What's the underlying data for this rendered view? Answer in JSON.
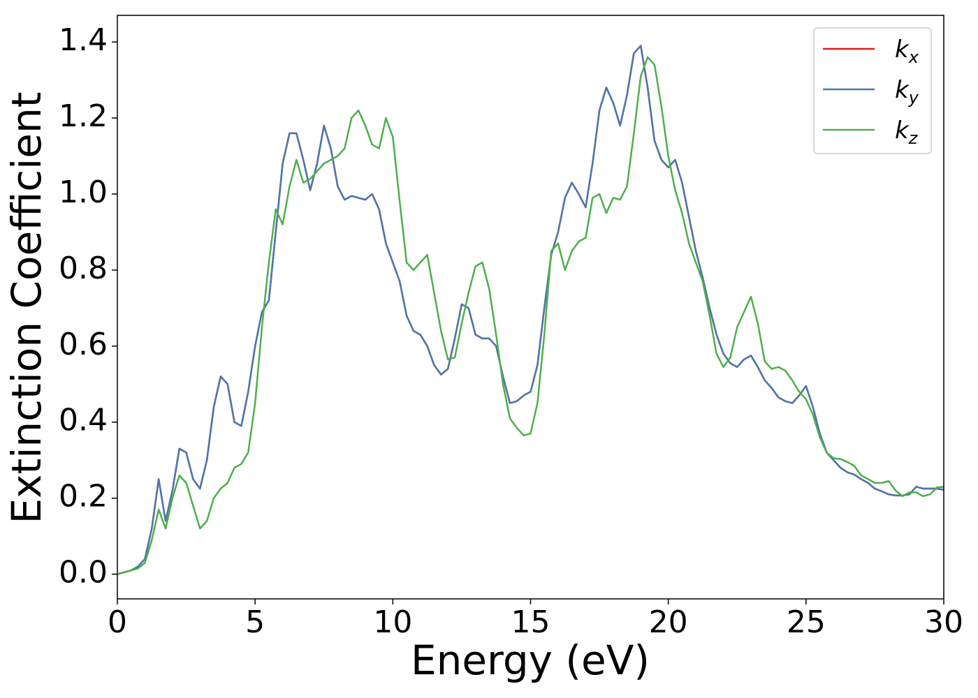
{
  "chart_data": {
    "type": "line",
    "xlabel": "Energy (eV)",
    "ylabel": "Extinction Coefficient",
    "xlim": [
      0,
      30
    ],
    "ylim": [
      -0.065,
      1.47
    ],
    "xticks": [
      0,
      5,
      10,
      15,
      20,
      25,
      30
    ],
    "yticks": [
      {
        "value": 0,
        "label": "0.0"
      },
      0.2,
      0.4,
      0.6,
      0.8,
      {
        "value": 1,
        "label": "1.0"
      },
      1.2,
      1.4
    ],
    "legend": "upper right",
    "grid": false,
    "x": [
      0,
      0.25,
      0.5,
      0.75,
      1,
      1.25,
      1.5,
      1.75,
      2,
      2.25,
      2.5,
      2.75,
      3,
      3.25,
      3.5,
      3.75,
      4,
      4.25,
      4.5,
      4.75,
      5,
      5.25,
      5.5,
      5.75,
      6,
      6.25,
      6.5,
      6.75,
      7,
      7.25,
      7.5,
      7.75,
      8,
      8.25,
      8.5,
      8.75,
      9,
      9.25,
      9.5,
      9.75,
      10,
      10.25,
      10.5,
      10.75,
      11,
      11.25,
      11.5,
      11.75,
      12,
      12.25,
      12.5,
      12.75,
      13,
      13.25,
      13.5,
      13.75,
      14,
      14.25,
      14.5,
      14.75,
      15,
      15.25,
      15.5,
      15.75,
      16,
      16.25,
      16.5,
      16.75,
      17,
      17.25,
      17.5,
      17.75,
      18,
      18.25,
      18.5,
      18.75,
      19,
      19.25,
      19.5,
      19.75,
      20,
      20.25,
      20.5,
      20.75,
      21,
      21.25,
      21.5,
      21.75,
      22,
      22.25,
      22.5,
      22.75,
      23,
      23.25,
      23.5,
      23.75,
      24,
      24.25,
      24.5,
      24.75,
      25,
      25.25,
      25.5,
      25.75,
      26,
      26.25,
      26.5,
      26.75,
      27,
      27.25,
      27.5,
      27.75,
      28,
      28.25,
      28.5,
      28.75,
      29,
      29.25,
      29.5,
      29.75,
      30
    ],
    "series": [
      {
        "name": "k_x",
        "color": "#e41a1c",
        "values": [
          0,
          0.005,
          0.01,
          0.02,
          0.04,
          0.12,
          0.25,
          0.14,
          0.22,
          0.33,
          0.32,
          0.25,
          0.225,
          0.3,
          0.44,
          0.52,
          0.5,
          0.4,
          0.39,
          0.48,
          0.6,
          0.69,
          0.72,
          0.9,
          1.08,
          1.16,
          1.16,
          1.09,
          1.01,
          1.08,
          1.18,
          1.12,
          1.02,
          0.985,
          0.995,
          0.99,
          0.985,
          1.0,
          0.96,
          0.87,
          0.82,
          0.77,
          0.68,
          0.64,
          0.63,
          0.6,
          0.55,
          0.525,
          0.54,
          0.62,
          0.71,
          0.7,
          0.63,
          0.62,
          0.62,
          0.6,
          0.52,
          0.45,
          0.455,
          0.47,
          0.48,
          0.55,
          0.7,
          0.84,
          0.9,
          0.99,
          1.03,
          1.0,
          0.965,
          1.08,
          1.22,
          1.28,
          1.24,
          1.18,
          1.26,
          1.37,
          1.39,
          1.28,
          1.14,
          1.09,
          1.07,
          1.09,
          1.03,
          0.94,
          0.85,
          0.78,
          0.7,
          0.63,
          0.58,
          0.555,
          0.545,
          0.565,
          0.575,
          0.545,
          0.51,
          0.49,
          0.465,
          0.455,
          0.45,
          0.47,
          0.495,
          0.44,
          0.37,
          0.32,
          0.3,
          0.28,
          0.268,
          0.262,
          0.25,
          0.24,
          0.225,
          0.218,
          0.21,
          0.207,
          0.207,
          0.21,
          0.23,
          0.225,
          0.225,
          0.225,
          0.222
        ]
      },
      {
        "name": "k_y",
        "color": "#4a78ae",
        "values": [
          0,
          0.005,
          0.01,
          0.02,
          0.04,
          0.12,
          0.25,
          0.14,
          0.22,
          0.33,
          0.32,
          0.25,
          0.225,
          0.3,
          0.44,
          0.52,
          0.5,
          0.4,
          0.39,
          0.48,
          0.6,
          0.69,
          0.72,
          0.9,
          1.08,
          1.16,
          1.16,
          1.09,
          1.01,
          1.08,
          1.18,
          1.12,
          1.02,
          0.985,
          0.995,
          0.99,
          0.985,
          1.0,
          0.96,
          0.87,
          0.82,
          0.77,
          0.68,
          0.64,
          0.63,
          0.6,
          0.55,
          0.525,
          0.54,
          0.62,
          0.71,
          0.7,
          0.63,
          0.62,
          0.62,
          0.6,
          0.52,
          0.45,
          0.455,
          0.47,
          0.48,
          0.55,
          0.7,
          0.84,
          0.9,
          0.99,
          1.03,
          1.0,
          0.965,
          1.08,
          1.22,
          1.28,
          1.24,
          1.18,
          1.26,
          1.37,
          1.39,
          1.28,
          1.14,
          1.09,
          1.07,
          1.09,
          1.03,
          0.94,
          0.85,
          0.78,
          0.7,
          0.63,
          0.58,
          0.555,
          0.545,
          0.565,
          0.575,
          0.545,
          0.51,
          0.49,
          0.465,
          0.455,
          0.45,
          0.47,
          0.495,
          0.44,
          0.37,
          0.32,
          0.3,
          0.28,
          0.268,
          0.262,
          0.25,
          0.24,
          0.225,
          0.218,
          0.21,
          0.207,
          0.207,
          0.21,
          0.23,
          0.225,
          0.225,
          0.225,
          0.222
        ]
      },
      {
        "name": "k_z",
        "color": "#4daf4a",
        "values": [
          0,
          0.005,
          0.01,
          0.015,
          0.03,
          0.09,
          0.17,
          0.12,
          0.2,
          0.26,
          0.24,
          0.18,
          0.12,
          0.14,
          0.2,
          0.225,
          0.24,
          0.28,
          0.29,
          0.32,
          0.45,
          0.65,
          0.82,
          0.96,
          0.92,
          1.02,
          1.09,
          1.03,
          1.04,
          1.06,
          1.08,
          1.09,
          1.1,
          1.12,
          1.2,
          1.22,
          1.18,
          1.13,
          1.12,
          1.2,
          1.15,
          0.98,
          0.82,
          0.8,
          0.82,
          0.84,
          0.74,
          0.64,
          0.565,
          0.57,
          0.66,
          0.74,
          0.81,
          0.82,
          0.75,
          0.63,
          0.5,
          0.41,
          0.385,
          0.365,
          0.37,
          0.45,
          0.63,
          0.85,
          0.87,
          0.8,
          0.85,
          0.875,
          0.885,
          0.99,
          1.0,
          0.95,
          0.99,
          0.985,
          1.02,
          1.16,
          1.31,
          1.36,
          1.34,
          1.23,
          1.1,
          1.01,
          0.95,
          0.87,
          0.82,
          0.77,
          0.68,
          0.58,
          0.545,
          0.57,
          0.65,
          0.69,
          0.73,
          0.66,
          0.56,
          0.54,
          0.545,
          0.535,
          0.51,
          0.48,
          0.46,
          0.42,
          0.36,
          0.32,
          0.305,
          0.303,
          0.295,
          0.285,
          0.26,
          0.25,
          0.24,
          0.24,
          0.245,
          0.22,
          0.205,
          0.215,
          0.215,
          0.205,
          0.21,
          0.228,
          0.23
        ]
      }
    ]
  }
}
